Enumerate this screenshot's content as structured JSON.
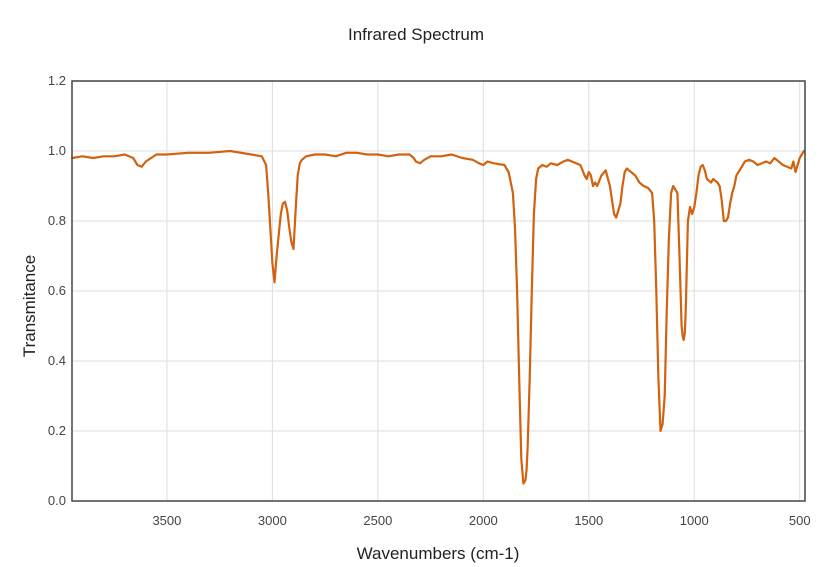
{
  "chart_data": {
    "type": "line",
    "title": "Infrared Spectrum",
    "xlabel": "Wavenumbers (cm-1)",
    "ylabel": "Transmitance",
    "xlim": [
      3950,
      475
    ],
    "ylim": [
      0,
      1.2
    ],
    "x_reversed": true,
    "x_ticks": [
      3500,
      3000,
      2500,
      2000,
      1500,
      1000,
      500
    ],
    "y_ticks": [
      0.0,
      0.2,
      0.4,
      0.6,
      0.8,
      1.0,
      1.2
    ],
    "y_tick_labels": [
      "0.0",
      "0.2",
      "0.4",
      "0.6",
      "0.8",
      "1.0",
      "1.2"
    ],
    "grid": true,
    "legend": "none",
    "colors": {
      "line": "#d2620e",
      "grid": "#dddddd",
      "axis": "#444444"
    },
    "series": [
      {
        "x": [
          3950,
          3900,
          3850,
          3800,
          3750,
          3700,
          3660,
          3640,
          3620,
          3600,
          3550,
          3500,
          3400,
          3300,
          3200,
          3100,
          3050,
          3030,
          3020,
          3010,
          3000,
          2990,
          2980,
          2970,
          2960,
          2950,
          2940,
          2930,
          2920,
          2910,
          2900,
          2890,
          2880,
          2870,
          2860,
          2840,
          2800,
          2750,
          2700,
          2650,
          2600,
          2550,
          2500,
          2450,
          2400,
          2350,
          2330,
          2320,
          2300,
          2280,
          2250,
          2200,
          2150,
          2100,
          2050,
          2020,
          2000,
          1980,
          1950,
          1900,
          1880,
          1860,
          1850,
          1840,
          1830,
          1820,
          1810,
          1800,
          1795,
          1790,
          1780,
          1770,
          1760,
          1750,
          1740,
          1720,
          1700,
          1680,
          1650,
          1620,
          1600,
          1580,
          1560,
          1540,
          1520,
          1510,
          1500,
          1490,
          1480,
          1470,
          1460,
          1450,
          1440,
          1420,
          1400,
          1390,
          1380,
          1370,
          1360,
          1350,
          1340,
          1330,
          1320,
          1310,
          1300,
          1280,
          1260,
          1240,
          1220,
          1200,
          1190,
          1180,
          1170,
          1160,
          1150,
          1140,
          1130,
          1120,
          1110,
          1100,
          1090,
          1080,
          1070,
          1060,
          1055,
          1050,
          1045,
          1040,
          1030,
          1020,
          1010,
          1000,
          990,
          980,
          970,
          960,
          950,
          940,
          930,
          920,
          910,
          900,
          890,
          880,
          870,
          860,
          850,
          840,
          830,
          820,
          810,
          800,
          780,
          760,
          740,
          720,
          700,
          680,
          660,
          640,
          620,
          600,
          580,
          560,
          540,
          530,
          520,
          510,
          500,
          490,
          480
        ],
        "y": [
          0.98,
          0.985,
          0.98,
          0.985,
          0.985,
          0.99,
          0.98,
          0.96,
          0.955,
          0.97,
          0.99,
          0.99,
          0.995,
          0.995,
          1.0,
          0.99,
          0.985,
          0.96,
          0.88,
          0.78,
          0.68,
          0.625,
          0.7,
          0.76,
          0.82,
          0.85,
          0.855,
          0.83,
          0.78,
          0.74,
          0.72,
          0.83,
          0.93,
          0.965,
          0.975,
          0.985,
          0.99,
          0.99,
          0.985,
          0.995,
          0.995,
          0.99,
          0.99,
          0.985,
          0.99,
          0.99,
          0.98,
          0.97,
          0.965,
          0.975,
          0.985,
          0.985,
          0.99,
          0.98,
          0.975,
          0.965,
          0.96,
          0.97,
          0.965,
          0.96,
          0.94,
          0.88,
          0.78,
          0.6,
          0.35,
          0.12,
          0.05,
          0.06,
          0.09,
          0.15,
          0.35,
          0.6,
          0.82,
          0.92,
          0.95,
          0.96,
          0.955,
          0.965,
          0.96,
          0.97,
          0.975,
          0.97,
          0.965,
          0.96,
          0.93,
          0.92,
          0.94,
          0.93,
          0.9,
          0.91,
          0.9,
          0.915,
          0.93,
          0.945,
          0.9,
          0.86,
          0.82,
          0.81,
          0.83,
          0.85,
          0.9,
          0.94,
          0.95,
          0.945,
          0.94,
          0.93,
          0.91,
          0.9,
          0.895,
          0.88,
          0.8,
          0.6,
          0.35,
          0.2,
          0.22,
          0.3,
          0.55,
          0.75,
          0.88,
          0.9,
          0.89,
          0.88,
          0.7,
          0.5,
          0.47,
          0.46,
          0.48,
          0.55,
          0.8,
          0.84,
          0.82,
          0.84,
          0.88,
          0.93,
          0.955,
          0.96,
          0.945,
          0.92,
          0.915,
          0.91,
          0.92,
          0.915,
          0.91,
          0.9,
          0.86,
          0.8,
          0.8,
          0.81,
          0.85,
          0.88,
          0.9,
          0.93,
          0.95,
          0.97,
          0.975,
          0.97,
          0.96,
          0.965,
          0.97,
          0.965,
          0.98,
          0.97,
          0.96,
          0.955,
          0.95,
          0.97,
          0.94,
          0.96,
          0.98,
          0.99,
          1.0
        ]
      }
    ]
  }
}
